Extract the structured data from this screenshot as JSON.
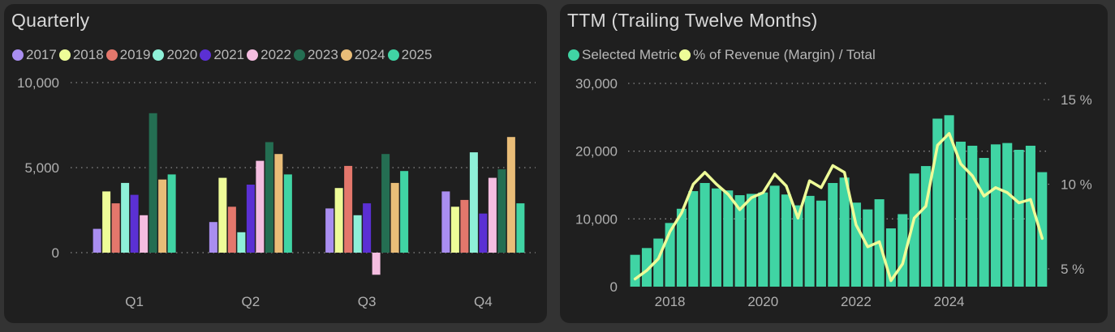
{
  "quarterly": {
    "title": "Quarterly",
    "chart_data": {
      "type": "bar",
      "title": "Quarterly",
      "categories": [
        "Q1",
        "Q2",
        "Q3",
        "Q4"
      ],
      "ylim": [
        -1500,
        10000
      ],
      "yticks": [
        0,
        5000,
        10000
      ],
      "ytick_labels": [
        "0",
        "5,000",
        "10,000"
      ],
      "grid": true,
      "legend_position": "top-left",
      "series": [
        {
          "name": "2017",
          "color": "#a98ef0",
          "values": [
            1400,
            1800,
            2600,
            3600
          ]
        },
        {
          "name": "2018",
          "color": "#eefc98",
          "values": [
            3600,
            4400,
            3800,
            2700
          ]
        },
        {
          "name": "2019",
          "color": "#e4776c",
          "values": [
            2900,
            2700,
            5100,
            3100
          ]
        },
        {
          "name": "2020",
          "color": "#8ef0d8",
          "values": [
            4100,
            1200,
            2200,
            5900
          ]
        },
        {
          "name": "2021",
          "color": "#5b30d4",
          "values": [
            3400,
            4000,
            2900,
            2300
          ]
        },
        {
          "name": "2022",
          "color": "#f4bde0",
          "values": [
            2200,
            5400,
            -1300,
            4400
          ]
        },
        {
          "name": "2023",
          "color": "#246e52",
          "values": [
            8200,
            6500,
            5800,
            4900
          ]
        },
        {
          "name": "2024",
          "color": "#e9bd78",
          "values": [
            4300,
            5800,
            4100,
            6800
          ]
        },
        {
          "name": "2025",
          "color": "#40d4a4",
          "values": [
            4600,
            4600,
            4800,
            2900
          ]
        }
      ]
    }
  },
  "ttm": {
    "title": "TTM (Trailing Twelve Months)",
    "chart_data": {
      "type": "bar",
      "title": "TTM (Trailing Twelve Months)",
      "x_start": 2017.25,
      "x_step": 0.25,
      "xlim": [
        2017.1,
        2026.1
      ],
      "xticks": [
        2018,
        2020,
        2022,
        2024
      ],
      "ylim": [
        0,
        30000
      ],
      "yticks": [
        0,
        10000,
        20000,
        30000
      ],
      "ytick_labels": [
        "0",
        "10,000",
        "20,000",
        "30,000"
      ],
      "y2lim": [
        4,
        16
      ],
      "y2ticks": [
        5,
        10,
        15
      ],
      "y2tick_labels": [
        "5 %",
        "10 %",
        "15 %"
      ],
      "grid": true,
      "legend_position": "top-left",
      "series": [
        {
          "name": "Selected Metric",
          "type": "bar",
          "axis": "left",
          "color": "#40d4a4",
          "values": [
            4700,
            5700,
            7100,
            9400,
            11500,
            14100,
            15300,
            14500,
            14200,
            13500,
            13700,
            13900,
            14900,
            13600,
            12000,
            13400,
            12700,
            15300,
            16100,
            12400,
            11400,
            12900,
            8600,
            10700,
            16700,
            17800,
            24800,
            25300,
            21400,
            20800,
            19000,
            21000,
            21200,
            20200,
            20800,
            16900
          ]
        },
        {
          "name": "% of Revenue (Margin) / Total",
          "type": "line",
          "axis": "right",
          "color": "#eefc98",
          "values": [
            4.4,
            4.9,
            5.6,
            7.2,
            8.3,
            10.0,
            10.7,
            10.0,
            9.4,
            8.5,
            9.2,
            9.5,
            10.6,
            9.9,
            8.0,
            10.2,
            9.8,
            11.1,
            10.7,
            7.6,
            6.3,
            6.6,
            4.3,
            5.3,
            8.0,
            8.7,
            12.3,
            13.0,
            11.2,
            10.5,
            9.3,
            9.8,
            9.5,
            8.9,
            9.1,
            6.8
          ]
        }
      ]
    }
  }
}
